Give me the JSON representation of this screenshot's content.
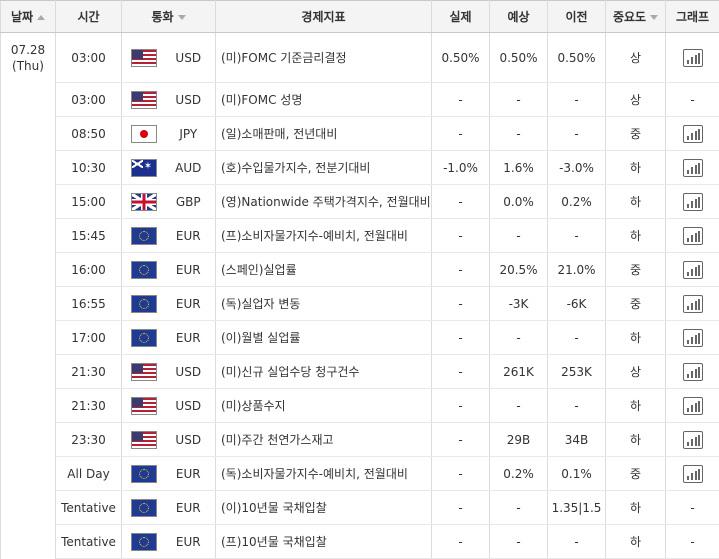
{
  "headers": {
    "date": "날짜",
    "time": "시간",
    "currency": "통화",
    "indicator": "경제지표",
    "actual": "실제",
    "forecast": "예상",
    "previous": "이전",
    "importance": "중요도",
    "graph": "그래프"
  },
  "date": {
    "day": "07.28",
    "weekday": "(Thu)"
  },
  "colors": {
    "header_bg": "#f4f4f4",
    "border": "#dcdcdc",
    "flag_red": "#b22234",
    "flag_blue": "#3c3b6e",
    "eu_blue": "#1f3a93"
  },
  "rows": [
    {
      "time": "03:00",
      "flag": "us-flag-icon",
      "currency": "USD",
      "indicator": "(미)FOMC 기준금리결정",
      "actual": "0.50%",
      "forecast": "0.50%",
      "previous": "0.50%",
      "importance": "상",
      "graph": "chart-icon"
    },
    {
      "time": "03:00",
      "flag": "us-flag-icon",
      "currency": "USD",
      "indicator": "(미)FOMC 성명",
      "actual": "-",
      "forecast": "-",
      "previous": "-",
      "importance": "상",
      "graph": "-"
    },
    {
      "time": "08:50",
      "flag": "jp-flag-icon",
      "currency": "JPY",
      "indicator": "(일)소매판매, 전년대비",
      "actual": "-",
      "forecast": "-",
      "previous": "-",
      "importance": "중",
      "graph": "chart-icon"
    },
    {
      "time": "10:30",
      "flag": "au-flag-icon",
      "currency": "AUD",
      "indicator": "(호)수입물가지수, 전분기대비",
      "actual": "-1.0%",
      "forecast": "1.6%",
      "previous": "-3.0%",
      "importance": "하",
      "graph": "chart-icon"
    },
    {
      "time": "15:00",
      "flag": "gb-flag-icon",
      "currency": "GBP",
      "indicator": "(영)Nationwide 주택가격지수, 전월대비",
      "actual": "-",
      "forecast": "0.0%",
      "previous": "0.2%",
      "importance": "하",
      "graph": "chart-icon"
    },
    {
      "time": "15:45",
      "flag": "eu-flag-icon",
      "currency": "EUR",
      "indicator": "(프)소비자물가지수-예비치, 전월대비",
      "actual": "-",
      "forecast": "-",
      "previous": "-",
      "importance": "하",
      "graph": "chart-icon"
    },
    {
      "time": "16:00",
      "flag": "eu-flag-icon",
      "currency": "EUR",
      "indicator": "(스페인)실업률",
      "actual": "-",
      "forecast": "20.5%",
      "previous": "21.0%",
      "importance": "중",
      "graph": "chart-icon"
    },
    {
      "time": "16:55",
      "flag": "eu-flag-icon",
      "currency": "EUR",
      "indicator": "(독)실업자 변동",
      "actual": "-",
      "forecast": "-3K",
      "previous": "-6K",
      "importance": "중",
      "graph": "chart-icon"
    },
    {
      "time": "17:00",
      "flag": "eu-flag-icon",
      "currency": "EUR",
      "indicator": "(이)월별 실업률",
      "actual": "-",
      "forecast": "-",
      "previous": "-",
      "importance": "하",
      "graph": "chart-icon"
    },
    {
      "time": "21:30",
      "flag": "us-flag-icon",
      "currency": "USD",
      "indicator": "(미)신규 실업수당 청구건수",
      "actual": "-",
      "forecast": "261K",
      "previous": "253K",
      "importance": "상",
      "graph": "chart-icon"
    },
    {
      "time": "21:30",
      "flag": "us-flag-icon",
      "currency": "USD",
      "indicator": "(미)상품수지",
      "actual": "-",
      "forecast": "-",
      "previous": "-",
      "importance": "하",
      "graph": "chart-icon"
    },
    {
      "time": "23:30",
      "flag": "us-flag-icon",
      "currency": "USD",
      "indicator": "(미)주간 천연가스재고",
      "actual": "-",
      "forecast": "29B",
      "previous": "34B",
      "importance": "하",
      "graph": "chart-icon"
    },
    {
      "time": "All Day",
      "flag": "eu-flag-icon",
      "currency": "EUR",
      "indicator": "(독)소비자물가지수-예비치, 전월대비",
      "actual": "-",
      "forecast": "0.2%",
      "previous": "0.1%",
      "importance": "중",
      "graph": "chart-icon"
    },
    {
      "time": "Tentative",
      "flag": "eu-flag-icon",
      "currency": "EUR",
      "indicator": "(이)10년물 국채입찰",
      "actual": "-",
      "forecast": "-",
      "previous": "1.35|1.5",
      "importance": "하",
      "graph": "-"
    },
    {
      "time": "Tentative",
      "flag": "eu-flag-icon",
      "currency": "EUR",
      "indicator": "(프)10년물 국채입찰",
      "actual": "-",
      "forecast": "-",
      "previous": "-",
      "importance": "하",
      "graph": "-"
    }
  ]
}
